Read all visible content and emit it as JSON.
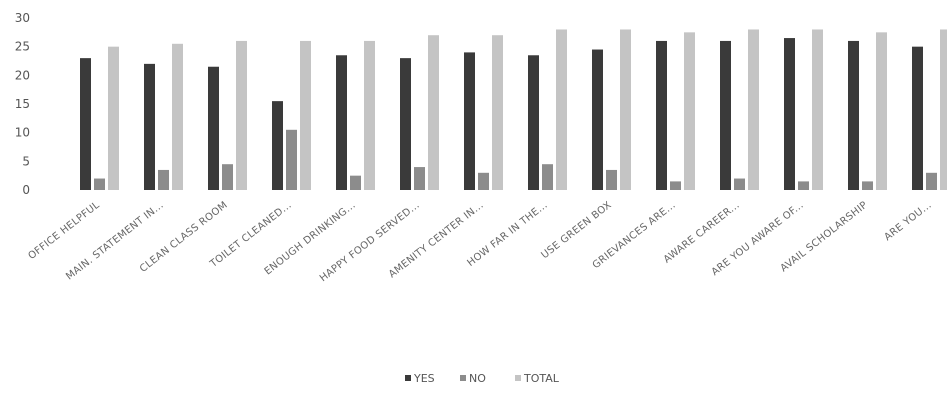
{
  "chart_data": {
    "type": "bar",
    "title": "",
    "xlabel": "",
    "ylabel": "",
    "ylim": [
      0,
      30
    ],
    "yticks": [
      0,
      5,
      10,
      15,
      20,
      25,
      30
    ],
    "grid": false,
    "legend_position": "bottom",
    "categories": [
      "OFFICE HELPFUL",
      "MAIN. STATEMENT IN...",
      "CLEAN CLASS ROOM",
      "TOILET CLEANED...",
      "ENOUGH DRINKING...",
      "HAPPY FOOD SERVED...",
      "AMENITY CENTER IN...",
      "HOW FAR IN THE...",
      "USE GREEN BOX",
      "GRIEVANCES ARE...",
      "AWARE CAREER...",
      "ARE YOU AWARE OF...",
      "AVAIL SCHOLARSHIP",
      "ARE YOU..."
    ],
    "series": [
      {
        "name": "YES",
        "color": "#3a3a3a",
        "values": [
          23,
          22,
          21.5,
          15.5,
          23.5,
          23,
          24,
          23.5,
          24.5,
          26,
          26,
          26.5,
          26,
          25
        ]
      },
      {
        "name": "NO",
        "color": "#8c8c8c",
        "values": [
          2,
          3.5,
          4.5,
          10.5,
          2.5,
          4,
          3,
          4.5,
          3.5,
          1.5,
          2,
          1.5,
          1.5,
          3
        ]
      },
      {
        "name": "TOTAL",
        "color": "#c4c4c4",
        "values": [
          25,
          25.5,
          26,
          26,
          26,
          27,
          27,
          28,
          28,
          27.5,
          28,
          28,
          27.5,
          28
        ]
      }
    ]
  }
}
